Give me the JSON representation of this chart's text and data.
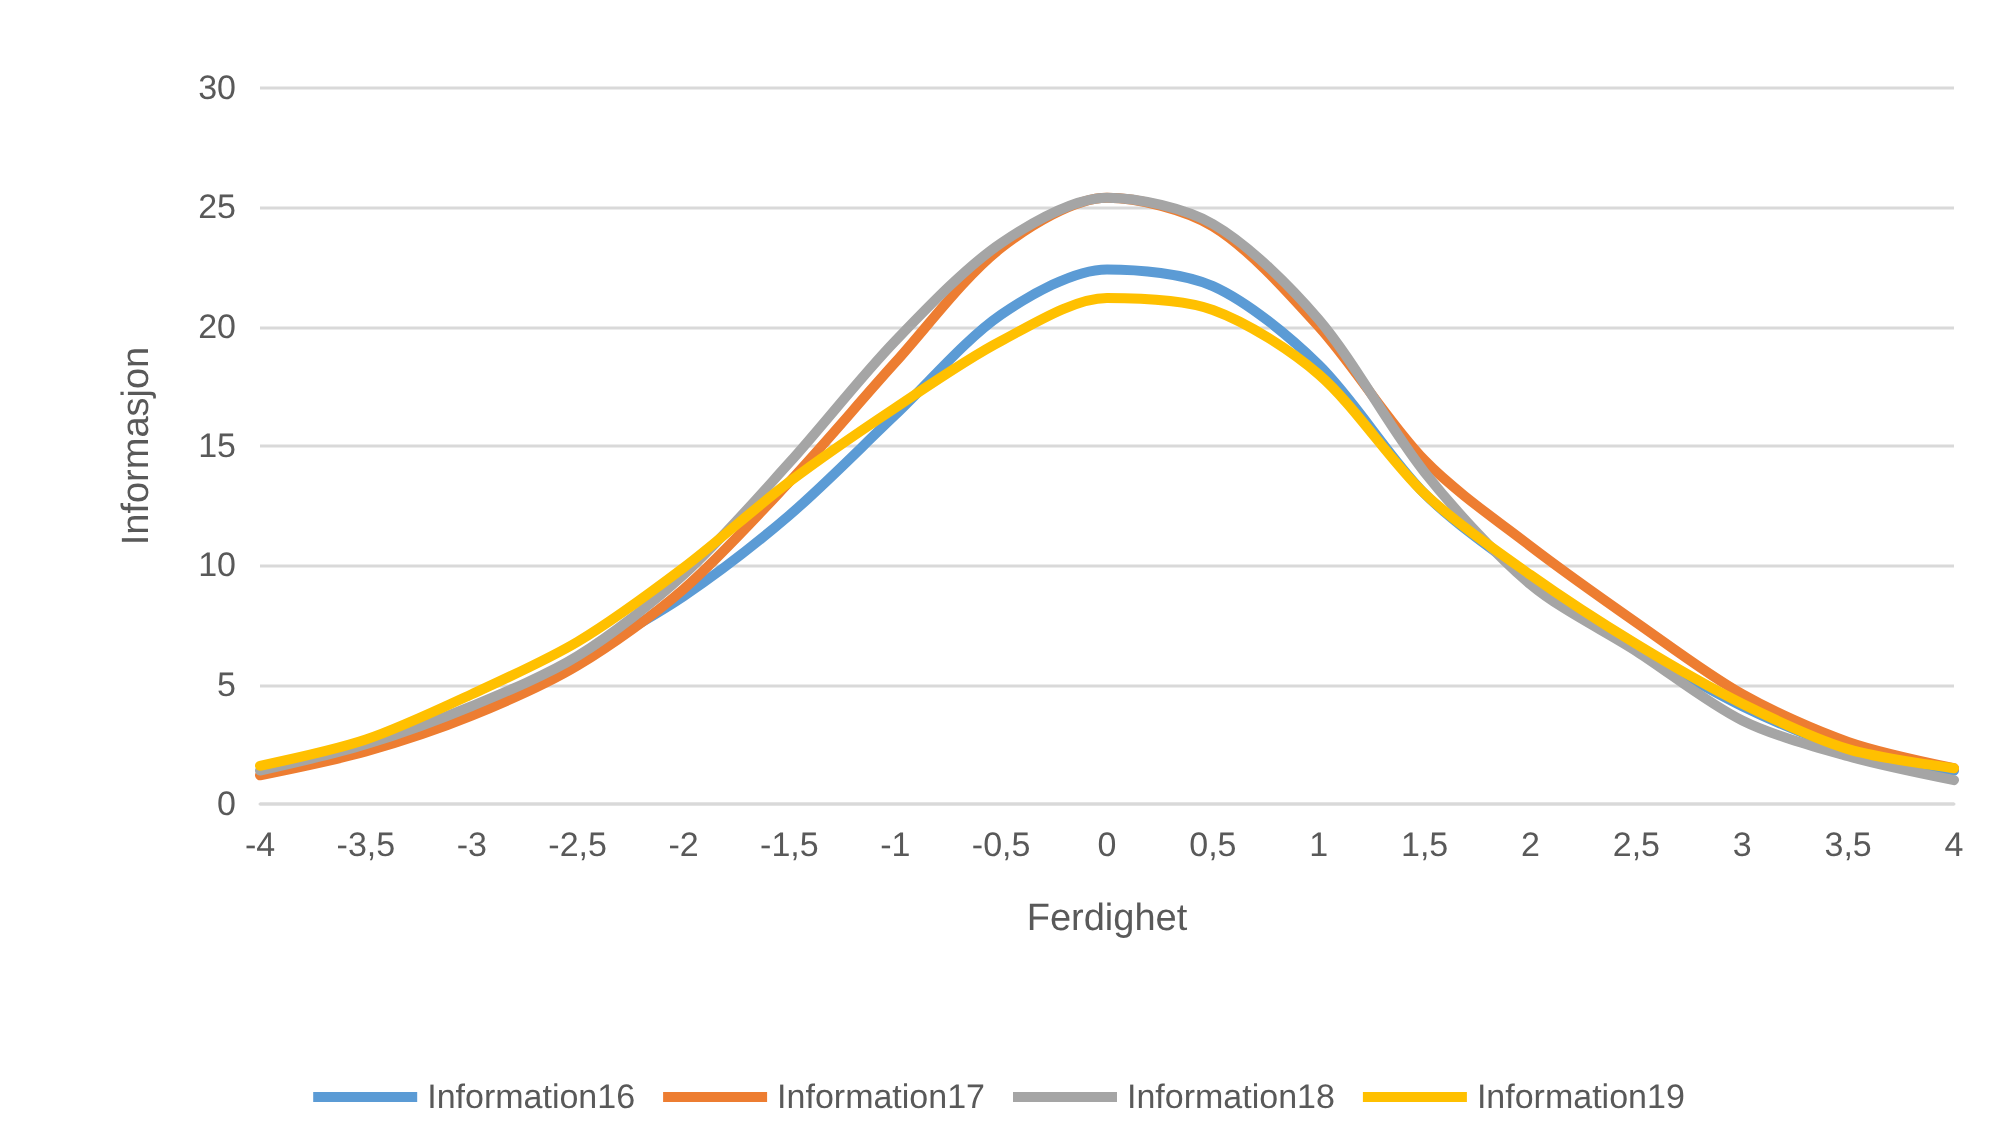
{
  "chart_data": {
    "type": "line",
    "xlabel": "Ferdighet",
    "ylabel": "Informasjon",
    "x": [
      -4,
      -3.5,
      -3,
      -2.5,
      -2,
      -1.5,
      -1,
      -0.5,
      0,
      0.5,
      1,
      1.5,
      2,
      2.5,
      3,
      3.5,
      4
    ],
    "series": [
      {
        "name": "Information16",
        "color": "#5b9bd5",
        "values": [
          null,
          null,
          null,
          6.1,
          8.7,
          12.1,
          16.3,
          20.5,
          22.4,
          21.7,
          18.4,
          13.0,
          9.5,
          6.6,
          4.1,
          2.3,
          1.4
        ]
      },
      {
        "name": "Information17",
        "color": "#ed7d31",
        "values": [
          1.2,
          2.2,
          3.7,
          5.8,
          9.0,
          13.5,
          18.5,
          23.3,
          25.4,
          24.2,
          20.0,
          14.4,
          10.8,
          7.6,
          4.6,
          2.6,
          1.5
        ]
      },
      {
        "name": "Information18",
        "color": "#a5a5a5",
        "values": [
          1.4,
          2.5,
          4.1,
          6.2,
          9.6,
          14.3,
          19.4,
          23.5,
          25.4,
          24.3,
          20.3,
          13.9,
          9.2,
          6.4,
          3.5,
          2.0,
          1.0
        ]
      },
      {
        "name": "Information19",
        "color": "#ffc000",
        "values": [
          1.6,
          2.7,
          4.6,
          6.8,
          9.9,
          13.5,
          16.6,
          19.4,
          21.2,
          20.7,
          18.0,
          13.0,
          9.6,
          6.7,
          4.2,
          2.3,
          1.5
        ]
      }
    ],
    "xlim": [
      -4,
      4
    ],
    "xticks": [
      -4,
      {
        "value": -3.5,
        "label": "-3,5"
      },
      -3,
      {
        "value": -2.5,
        "label": "-2,5"
      },
      -2,
      {
        "value": -1.5,
        "label": "-1,5"
      },
      -1,
      {
        "value": -0.5,
        "label": "-0,5"
      },
      0,
      {
        "value": 0.5,
        "label": "0,5"
      },
      1,
      {
        "value": 1.5,
        "label": "1,5"
      },
      2,
      {
        "value": 2.5,
        "label": "2,5"
      },
      3,
      {
        "value": 3.5,
        "label": "3,5"
      },
      4
    ],
    "ylim": [
      0,
      30
    ],
    "yticks": [
      0,
      5,
      10,
      15,
      20,
      25,
      30
    ],
    "grid": "y",
    "legend": "bottom",
    "marker": "none",
    "line_style": "solid"
  }
}
